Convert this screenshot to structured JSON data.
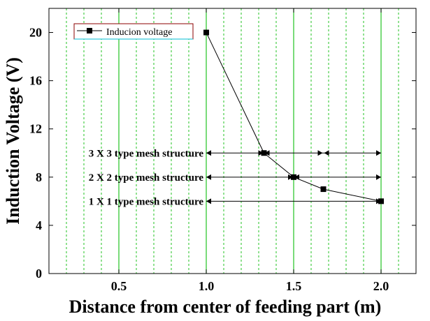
{
  "chart_data": {
    "type": "line",
    "title": "",
    "xlabel": "Distance from center of feeding part (m)",
    "ylabel": "Induction Voltage (V)",
    "xlim": [
      0.1,
      2.2
    ],
    "ylim": [
      0,
      22
    ],
    "x_ticks": [
      0.5,
      1.0,
      1.5,
      2.0
    ],
    "x_tick_labels": [
      "0.5",
      "1.0",
      "1.5",
      "2.0"
    ],
    "y_ticks": [
      0,
      4,
      8,
      12,
      16,
      20
    ],
    "y_tick_labels": [
      "0",
      "4",
      "8",
      "12",
      "16",
      "20"
    ],
    "grid": {
      "vertical_green_lines": [
        0.2,
        0.3,
        0.4,
        0.5,
        0.6,
        0.7,
        0.8,
        0.9,
        1.0,
        1.1,
        1.2,
        1.3,
        1.4,
        1.5,
        1.6,
        1.7,
        1.8,
        1.9,
        2.0,
        2.1
      ],
      "major_lines": [
        0.5,
        1.0,
        1.5,
        2.0
      ]
    },
    "legend_position": "top-left",
    "series": [
      {
        "name": "Inducion voltage",
        "color": "#000000",
        "marker": "square",
        "x": [
          1.0,
          1.33,
          1.5,
          1.67,
          2.0
        ],
        "y": [
          20,
          10,
          8,
          7,
          6
        ]
      }
    ],
    "annotations": [
      {
        "text": "3 X 3 type mesh structure",
        "y": 10,
        "arrow_x": [
          1.0,
          2.0
        ],
        "ticks": [
          1.33,
          1.67
        ]
      },
      {
        "text": "2 X 2 type mesh structure",
        "y": 8,
        "arrow_x": [
          1.0,
          2.0
        ],
        "ticks": [
          1.5
        ]
      },
      {
        "text": "1 X 1 type mesh structure",
        "y": 6,
        "arrow_x": [
          1.0,
          2.0
        ],
        "ticks": []
      }
    ]
  }
}
